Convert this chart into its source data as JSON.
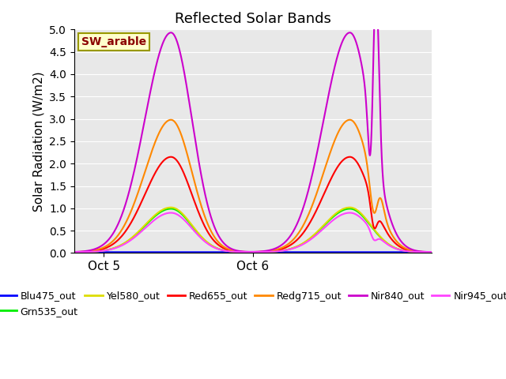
{
  "title": "Reflected Solar Bands",
  "ylabel": "Solar Radiation (W/m2)",
  "ylim": [
    0,
    5.0
  ],
  "yticks": [
    0.0,
    0.5,
    1.0,
    1.5,
    2.0,
    2.5,
    3.0,
    3.5,
    4.0,
    4.5,
    5.0
  ],
  "background_color": "#e8e8e8",
  "annotation_text": "SW_arable",
  "annotation_color": "#8b0000",
  "annotation_bg": "#ffffcc",
  "annotation_edge": "#999900",
  "colors": {
    "Blu475_out": "#0000ff",
    "Grn535_out": "#00ee00",
    "Yel580_out": "#dddd00",
    "Red655_out": "#ff0000",
    "Redg715_out": "#ff8800",
    "Nir840_out": "#cc00cc",
    "Nir945_out": "#ff44ff"
  },
  "legend_order": [
    "Blu475_out",
    "Grn535_out",
    "Yel580_out",
    "Red655_out",
    "Redg715_out",
    "Nir840_out",
    "Nir945_out"
  ]
}
